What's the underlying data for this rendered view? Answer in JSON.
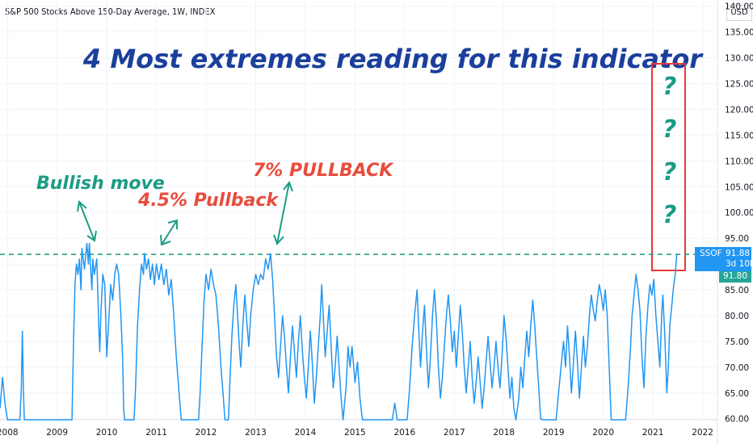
{
  "header": {
    "symbol_title": "S&P 500 Stocks Above 150-Day Average, 1W, INDEX",
    "currency": "USD"
  },
  "annotations": {
    "headline": "4  Most extremes reading for this indicator",
    "bullish_move": "Bullish move",
    "pullback_45": "4.5% Pullback",
    "pullback_7": "7% PULLBACK",
    "question_mark": "?"
  },
  "price_scale": {
    "symbol_tag": "SSOF",
    "last_value": "91.88",
    "countdown": "3d 10h",
    "secondary_value": "91.80"
  },
  "colors": {
    "series": "#2196f3",
    "annotation_green": "#1b9c85",
    "annotation_red": "#e84c3d",
    "headline_blue": "#1a3f9c",
    "box_red": "#e53935",
    "dashed_line": "#2aa184",
    "last_price_tag": "#2196f3",
    "secondary_tag": "#26a69a"
  },
  "chart_data": {
    "type": "line",
    "title": "S&P 500 Stocks Above 150-Day Average, 1W, INDEX",
    "x_ticks": [
      "2008",
      "2009",
      "2010",
      "2011",
      "2012",
      "2013",
      "2014",
      "2015",
      "2016",
      "2017",
      "2018",
      "2019",
      "2020",
      "2021",
      "2022"
    ],
    "y_ticks": [
      "60.00",
      "65.00",
      "70.00",
      "75.00",
      "80.00",
      "85.00",
      "90.00",
      "95.00",
      "100.00",
      "105.00",
      "110.00",
      "115.00",
      "120.00",
      "125.00",
      "130.00",
      "135.00",
      "140.00"
    ],
    "xlim": [
      2007.85,
      2022.3
    ],
    "ylim": [
      59.8,
      141.2
    ],
    "grid": true,
    "dashed_level": 91.88,
    "series": [
      {
        "values": [
          [
            2007.85,
            62
          ],
          [
            2007.9,
            68
          ],
          [
            2007.95,
            63
          ],
          [
            2008.0,
            59.8
          ],
          [
            2008.25,
            59.8
          ],
          [
            2008.28,
            66
          ],
          [
            2008.3,
            77
          ],
          [
            2008.32,
            66
          ],
          [
            2008.34,
            59.8
          ],
          [
            2009.3,
            59.8
          ],
          [
            2009.33,
            75
          ],
          [
            2009.36,
            86
          ],
          [
            2009.39,
            90
          ],
          [
            2009.42,
            88
          ],
          [
            2009.45,
            91
          ],
          [
            2009.48,
            85
          ],
          [
            2009.5,
            93
          ],
          [
            2009.55,
            89
          ],
          [
            2009.6,
            94
          ],
          [
            2009.63,
            90
          ],
          [
            2009.65,
            94
          ],
          [
            2009.7,
            85
          ],
          [
            2009.72,
            91
          ],
          [
            2009.75,
            88
          ],
          [
            2009.8,
            91
          ],
          [
            2009.84,
            78
          ],
          [
            2009.86,
            73
          ],
          [
            2009.88,
            80
          ],
          [
            2009.92,
            88
          ],
          [
            2009.96,
            86
          ],
          [
            2010.0,
            72
          ],
          [
            2010.04,
            79
          ],
          [
            2010.08,
            86
          ],
          [
            2010.12,
            83
          ],
          [
            2010.16,
            88
          ],
          [
            2010.2,
            90
          ],
          [
            2010.24,
            88
          ],
          [
            2010.28,
            81
          ],
          [
            2010.32,
            72
          ],
          [
            2010.34,
            62
          ],
          [
            2010.36,
            59.8
          ],
          [
            2010.55,
            59.8
          ],
          [
            2010.58,
            66
          ],
          [
            2010.62,
            78
          ],
          [
            2010.66,
            85
          ],
          [
            2010.7,
            90
          ],
          [
            2010.74,
            88
          ],
          [
            2010.76,
            92
          ],
          [
            2010.8,
            89
          ],
          [
            2010.84,
            91
          ],
          [
            2010.88,
            87
          ],
          [
            2010.92,
            90
          ],
          [
            2010.96,
            86
          ],
          [
            2011.0,
            90
          ],
          [
            2011.05,
            87
          ],
          [
            2011.1,
            90
          ],
          [
            2011.15,
            86
          ],
          [
            2011.2,
            89
          ],
          [
            2011.25,
            84
          ],
          [
            2011.3,
            87
          ],
          [
            2011.35,
            80
          ],
          [
            2011.4,
            72
          ],
          [
            2011.45,
            66
          ],
          [
            2011.5,
            59.8
          ],
          [
            2011.85,
            59.8
          ],
          [
            2011.88,
            65
          ],
          [
            2011.92,
            74
          ],
          [
            2011.96,
            83
          ],
          [
            2012.0,
            88
          ],
          [
            2012.05,
            85
          ],
          [
            2012.1,
            89
          ],
          [
            2012.15,
            86
          ],
          [
            2012.2,
            84
          ],
          [
            2012.25,
            78
          ],
          [
            2012.3,
            70
          ],
          [
            2012.35,
            64
          ],
          [
            2012.38,
            59.8
          ],
          [
            2012.45,
            59.8
          ],
          [
            2012.48,
            67
          ],
          [
            2012.52,
            76
          ],
          [
            2012.56,
            82
          ],
          [
            2012.6,
            86
          ],
          [
            2012.63,
            81
          ],
          [
            2012.67,
            74
          ],
          [
            2012.7,
            70
          ],
          [
            2012.74,
            78
          ],
          [
            2012.78,
            84
          ],
          [
            2012.82,
            79
          ],
          [
            2012.86,
            74
          ],
          [
            2012.9,
            80
          ],
          [
            2012.95,
            85
          ],
          [
            2013.0,
            88
          ],
          [
            2013.05,
            86
          ],
          [
            2013.1,
            88
          ],
          [
            2013.15,
            87
          ],
          [
            2013.2,
            91
          ],
          [
            2013.25,
            89
          ],
          [
            2013.3,
            92
          ],
          [
            2013.34,
            87
          ],
          [
            2013.38,
            80
          ],
          [
            2013.42,
            72
          ],
          [
            2013.46,
            68
          ],
          [
            2013.5,
            74
          ],
          [
            2013.54,
            80
          ],
          [
            2013.58,
            76
          ],
          [
            2013.62,
            70
          ],
          [
            2013.66,
            65
          ],
          [
            2013.7,
            72
          ],
          [
            2013.74,
            78
          ],
          [
            2013.78,
            73
          ],
          [
            2013.82,
            68
          ],
          [
            2013.86,
            75
          ],
          [
            2013.9,
            80
          ],
          [
            2013.94,
            73
          ],
          [
            2013.98,
            68
          ],
          [
            2014.02,
            64
          ],
          [
            2014.06,
            70
          ],
          [
            2014.1,
            77
          ],
          [
            2014.14,
            71
          ],
          [
            2014.18,
            63
          ],
          [
            2014.22,
            68
          ],
          [
            2014.26,
            74
          ],
          [
            2014.3,
            80
          ],
          [
            2014.33,
            86
          ],
          [
            2014.36,
            80
          ],
          [
            2014.4,
            72
          ],
          [
            2014.44,
            77
          ],
          [
            2014.48,
            82
          ],
          [
            2014.52,
            74
          ],
          [
            2014.56,
            66
          ],
          [
            2014.6,
            70
          ],
          [
            2014.64,
            76
          ],
          [
            2014.68,
            70
          ],
          [
            2014.72,
            64
          ],
          [
            2014.76,
            59.8
          ],
          [
            2014.82,
            66
          ],
          [
            2014.86,
            74
          ],
          [
            2014.9,
            70
          ],
          [
            2014.94,
            74
          ],
          [
            2015.0,
            67
          ],
          [
            2015.05,
            71
          ],
          [
            2015.1,
            64
          ],
          [
            2015.15,
            59.8
          ],
          [
            2015.75,
            59.8
          ],
          [
            2015.8,
            63
          ],
          [
            2015.85,
            59.8
          ],
          [
            2016.05,
            59.8
          ],
          [
            2016.1,
            66
          ],
          [
            2016.15,
            74
          ],
          [
            2016.2,
            80
          ],
          [
            2016.25,
            85
          ],
          [
            2016.28,
            78
          ],
          [
            2016.32,
            70
          ],
          [
            2016.36,
            77
          ],
          [
            2016.4,
            82
          ],
          [
            2016.44,
            73
          ],
          [
            2016.48,
            66
          ],
          [
            2016.52,
            72
          ],
          [
            2016.56,
            80
          ],
          [
            2016.6,
            85
          ],
          [
            2016.64,
            79
          ],
          [
            2016.68,
            70
          ],
          [
            2016.72,
            64
          ],
          [
            2016.76,
            68
          ],
          [
            2016.8,
            74
          ],
          [
            2016.84,
            80
          ],
          [
            2016.88,
            84
          ],
          [
            2016.92,
            79
          ],
          [
            2016.96,
            73
          ],
          [
            2017.0,
            77
          ],
          [
            2017.04,
            70
          ],
          [
            2017.08,
            76
          ],
          [
            2017.12,
            82
          ],
          [
            2017.16,
            77
          ],
          [
            2017.2,
            70
          ],
          [
            2017.24,
            65
          ],
          [
            2017.28,
            70
          ],
          [
            2017.32,
            75
          ],
          [
            2017.36,
            68
          ],
          [
            2017.4,
            63
          ],
          [
            2017.44,
            67
          ],
          [
            2017.48,
            72
          ],
          [
            2017.52,
            67
          ],
          [
            2017.56,
            62
          ],
          [
            2017.6,
            66
          ],
          [
            2017.64,
            71
          ],
          [
            2017.68,
            76
          ],
          [
            2017.72,
            71
          ],
          [
            2017.76,
            66
          ],
          [
            2017.8,
            70
          ],
          [
            2017.84,
            75
          ],
          [
            2017.88,
            70
          ],
          [
            2017.92,
            66
          ],
          [
            2017.96,
            72
          ],
          [
            2018.0,
            80
          ],
          [
            2018.04,
            76
          ],
          [
            2018.08,
            70
          ],
          [
            2018.12,
            64
          ],
          [
            2018.16,
            68
          ],
          [
            2018.2,
            62
          ],
          [
            2018.24,
            59.8
          ],
          [
            2018.3,
            64
          ],
          [
            2018.34,
            70
          ],
          [
            2018.38,
            66
          ],
          [
            2018.42,
            72
          ],
          [
            2018.46,
            77
          ],
          [
            2018.5,
            72
          ],
          [
            2018.54,
            78
          ],
          [
            2018.58,
            83
          ],
          [
            2018.62,
            78
          ],
          [
            2018.66,
            72
          ],
          [
            2018.7,
            66
          ],
          [
            2018.74,
            60
          ],
          [
            2018.78,
            59.8
          ],
          [
            2019.05,
            59.8
          ],
          [
            2019.1,
            65
          ],
          [
            2019.15,
            70
          ],
          [
            2019.2,
            75
          ],
          [
            2019.24,
            70
          ],
          [
            2019.28,
            78
          ],
          [
            2019.32,
            72
          ],
          [
            2019.36,
            65
          ],
          [
            2019.4,
            71
          ],
          [
            2019.44,
            77
          ],
          [
            2019.48,
            71
          ],
          [
            2019.52,
            64
          ],
          [
            2019.56,
            70
          ],
          [
            2019.6,
            76
          ],
          [
            2019.64,
            70
          ],
          [
            2019.68,
            74
          ],
          [
            2019.72,
            80
          ],
          [
            2019.76,
            84
          ],
          [
            2019.8,
            81
          ],
          [
            2019.84,
            79
          ],
          [
            2019.88,
            83
          ],
          [
            2019.92,
            86
          ],
          [
            2019.96,
            84
          ],
          [
            2020.0,
            81
          ],
          [
            2020.04,
            85
          ],
          [
            2020.08,
            80
          ],
          [
            2020.12,
            70
          ],
          [
            2020.16,
            59.8
          ],
          [
            2020.45,
            59.8
          ],
          [
            2020.5,
            66
          ],
          [
            2020.55,
            74
          ],
          [
            2020.58,
            80
          ],
          [
            2020.62,
            84
          ],
          [
            2020.66,
            88
          ],
          [
            2020.7,
            85
          ],
          [
            2020.74,
            81
          ],
          [
            2020.78,
            72
          ],
          [
            2020.82,
            66
          ],
          [
            2020.86,
            76
          ],
          [
            2020.9,
            82
          ],
          [
            2020.94,
            86
          ],
          [
            2020.98,
            84
          ],
          [
            2021.02,
            87
          ],
          [
            2021.06,
            80
          ],
          [
            2021.1,
            75
          ],
          [
            2021.14,
            70
          ],
          [
            2021.18,
            81
          ],
          [
            2021.2,
            84
          ],
          [
            2021.24,
            76
          ],
          [
            2021.28,
            65
          ],
          [
            2021.31,
            70
          ],
          [
            2021.34,
            78
          ],
          [
            2021.38,
            82
          ],
          [
            2021.42,
            86
          ],
          [
            2021.45,
            88
          ],
          [
            2021.48,
            91.88
          ]
        ]
      }
    ]
  }
}
